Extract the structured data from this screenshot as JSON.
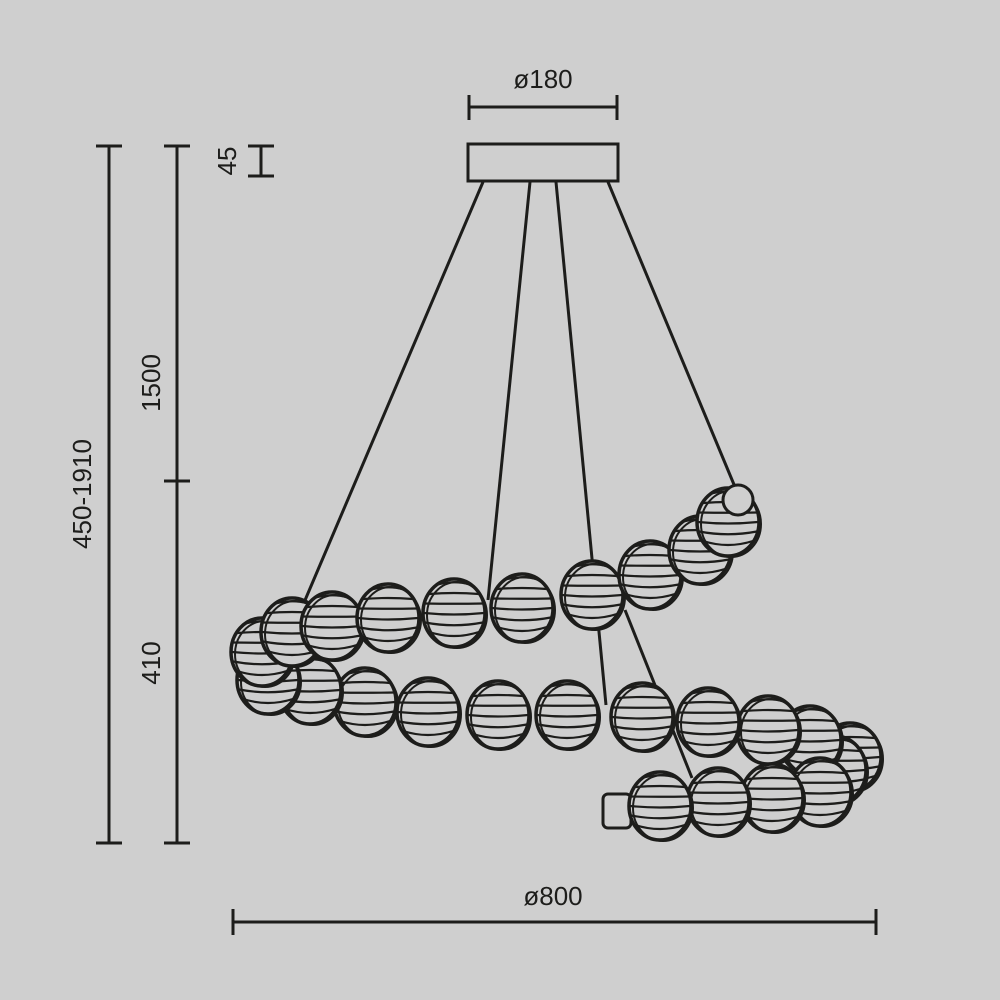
{
  "dimensions": {
    "canopy_diameter": "ø180",
    "canopy_height": "45",
    "cable_length": "1500",
    "total_height_range": "450-1910",
    "body_height": "410",
    "overall_diameter": "ø800"
  },
  "colors": {
    "background": "#cfcfcf",
    "line": "#1d1d1b"
  }
}
